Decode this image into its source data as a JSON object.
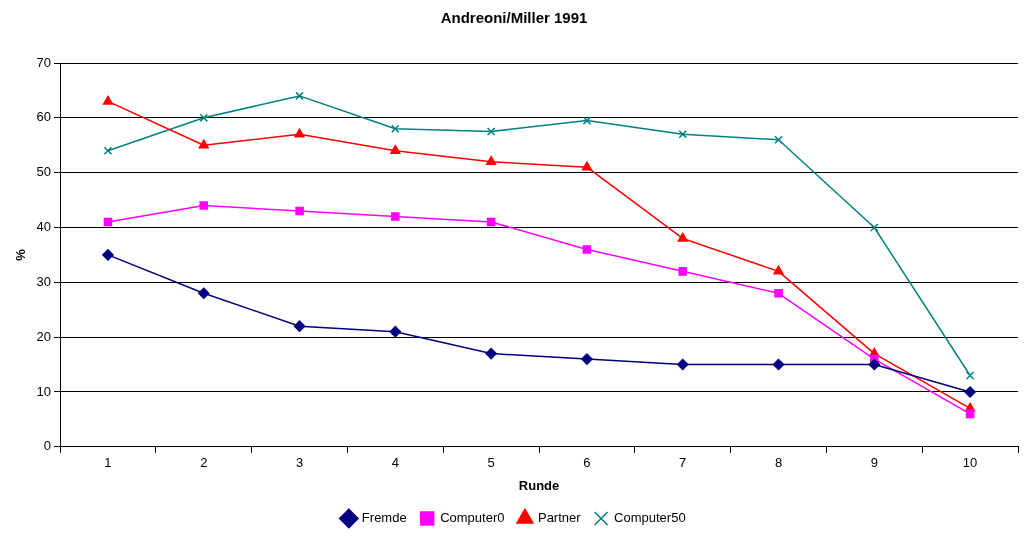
{
  "chart_data": {
    "type": "line",
    "title": "Andreoni/Miller 1991",
    "xlabel": "Runde",
    "ylabel": "%",
    "categories": [
      "1",
      "2",
      "3",
      "4",
      "5",
      "6",
      "7",
      "8",
      "9",
      "10"
    ],
    "series": [
      {
        "name": "Fremde",
        "color": "#000080",
        "marker": "diamond",
        "values": [
          35,
          28,
          22,
          21,
          17,
          16,
          15,
          15,
          15,
          10
        ]
      },
      {
        "name": "Computer0",
        "color": "#ff00ff",
        "marker": "square",
        "values": [
          41,
          44,
          43,
          42,
          41,
          36,
          32,
          28,
          16,
          6
        ]
      },
      {
        "name": "Partner",
        "color": "#ff0000",
        "marker": "triangle",
        "values": [
          63,
          55,
          57,
          54,
          52,
          51,
          38,
          32,
          17,
          7
        ]
      },
      {
        "name": "Computer50",
        "color": "#008080",
        "marker": "cross",
        "values": [
          54,
          60,
          64,
          58,
          57.5,
          59.5,
          57,
          56,
          40,
          13
        ]
      }
    ],
    "ylim": [
      0,
      70
    ],
    "yticks": [
      0,
      10,
      20,
      30,
      40,
      50,
      60,
      70
    ],
    "grid": "y",
    "legend": "bottom",
    "line_style": "solid"
  }
}
